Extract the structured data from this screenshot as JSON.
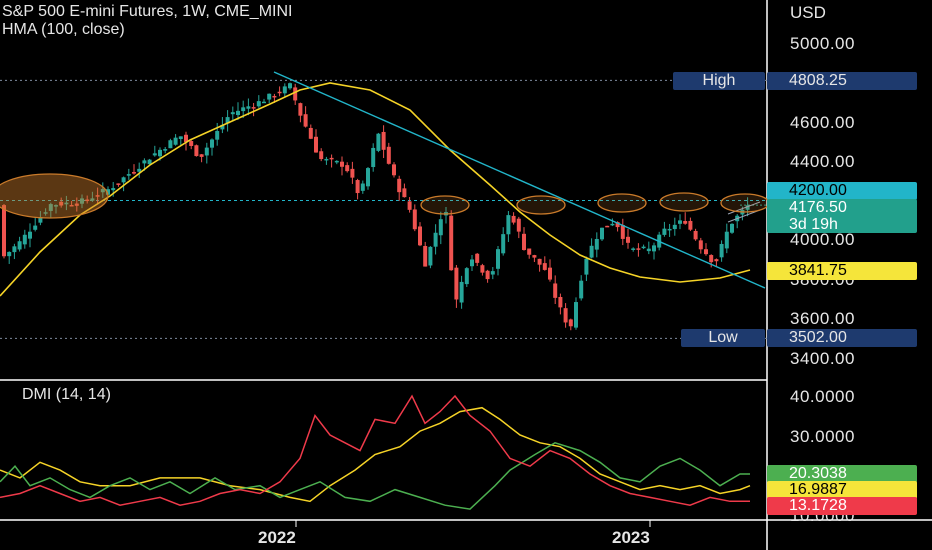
{
  "header": {
    "title": "S&P 500 E-mini Futures, 1W, CME_MINI",
    "indicator": "HMA (100, close)",
    "currency": "USD"
  },
  "price_axis": {
    "ticks": [
      "5000.00",
      "4600.00",
      "4400.00",
      "4000.00",
      "3600.00",
      "3400.00"
    ]
  },
  "markers": {
    "high_label": "High",
    "high_value": "4808.25",
    "low_label": "Low",
    "low_value": "3502.00"
  },
  "price_tags": {
    "level": "4200.00",
    "last_price": "4176.50",
    "countdown": "3d 19h",
    "hma_value": "3841.75",
    "hidden_tick": "3800.00"
  },
  "dmi": {
    "title": "DMI (14, 14)",
    "ticks": [
      "40.0000",
      "30.0000",
      "10.0000"
    ],
    "plus_di": "20.3038",
    "adx": "16.9887",
    "minus_di": "13.1728"
  },
  "time_axis": {
    "labels": [
      "2022",
      "2023"
    ]
  },
  "colors": {
    "up": "#26a69a",
    "down": "#ef5350",
    "hma": "#f5d327",
    "trendline": "#22b5c9",
    "ellipse": "#c97a2a",
    "level_tag": "#22b5c9",
    "last_tag": "#22a08c",
    "hma_tag": "#f5e53a",
    "plus_di": "#4caf50",
    "adx": "#f5d327",
    "minus_di": "#ef3a4a"
  }
}
